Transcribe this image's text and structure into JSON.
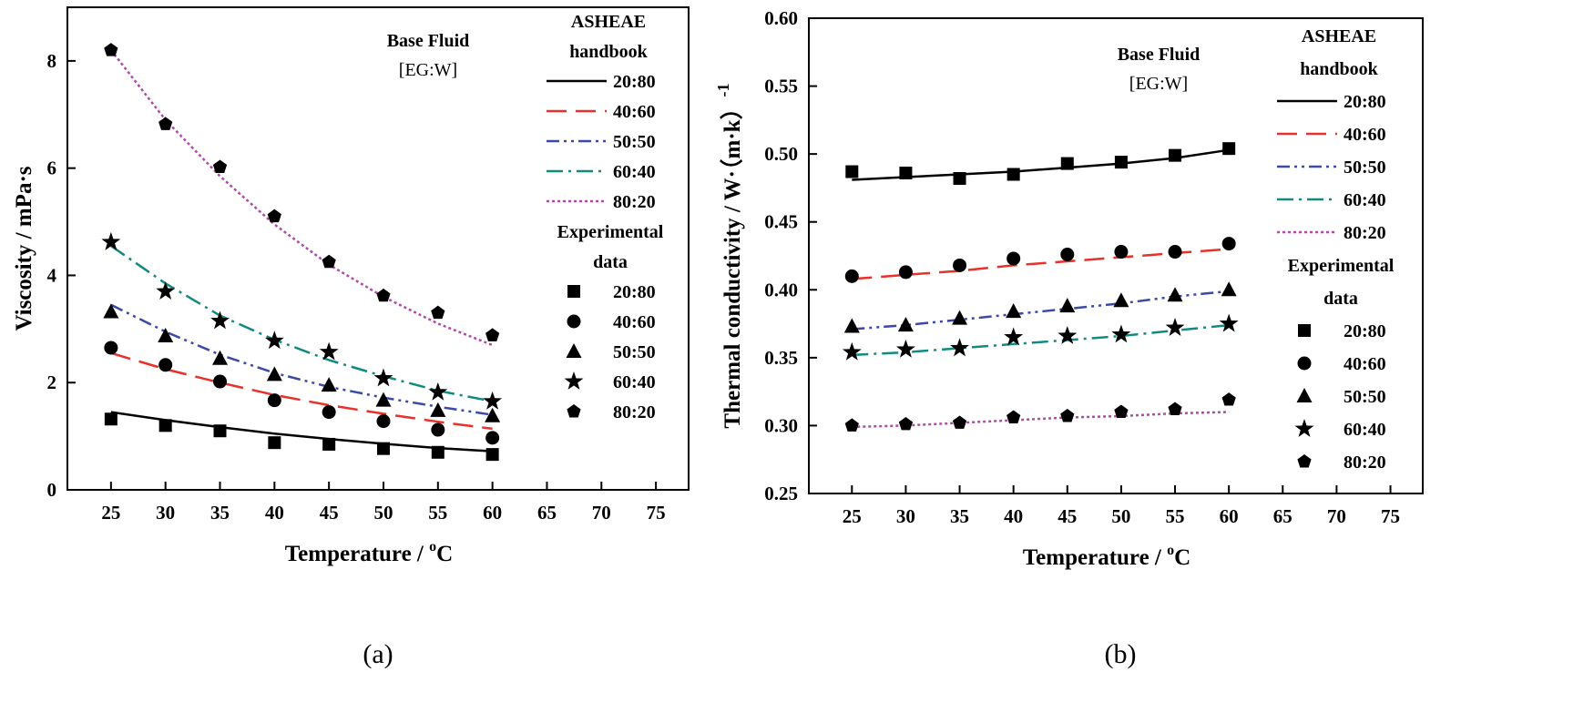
{
  "palette": {
    "20:80": "#000000",
    "40:60": "#e8312a",
    "50:50": "#3a4aa6",
    "60:40": "#138a80",
    "80:20": "#b04aa8"
  },
  "chart_data": [
    {
      "type": "line",
      "panel_label": "(a)",
      "xlabel": "Temperature / ",
      "xlabel_unit_sup": "o",
      "xlabel_unit": "C",
      "ylabel": "Viscosity /   mPa·s",
      "ylabel_sup": "",
      "xlim": [
        21,
        78
      ],
      "ylim": [
        0,
        9
      ],
      "xticks": [
        25,
        30,
        35,
        40,
        45,
        50,
        55,
        60,
        65,
        70,
        75
      ],
      "yticks": [
        0,
        2,
        4,
        6,
        8
      ],
      "base_fluid": [
        "Base Fluid",
        "[EG:W]"
      ],
      "handbook_title": [
        "ASHEAE",
        "handbook"
      ],
      "experimental_title": [
        "Experimental",
        "data"
      ],
      "x": [
        25,
        30,
        35,
        40,
        45,
        50,
        55,
        60
      ],
      "series": [
        {
          "name": "20:80",
          "marker": "square",
          "dash": "solid",
          "line": [
            1.45,
            1.3,
            1.17,
            1.05,
            0.95,
            0.86,
            0.78,
            0.72
          ],
          "points": [
            1.32,
            1.2,
            1.1,
            0.88,
            0.85,
            0.77,
            0.7,
            0.66
          ]
        },
        {
          "name": "40:60",
          "marker": "circle",
          "dash": "dash",
          "line": [
            2.55,
            2.25,
            2.0,
            1.77,
            1.58,
            1.42,
            1.27,
            1.14
          ],
          "points": [
            2.65,
            2.33,
            2.02,
            1.67,
            1.45,
            1.28,
            1.12,
            0.97
          ]
        },
        {
          "name": "50:50",
          "marker": "triangle",
          "dash": "dashdotdot",
          "line": [
            3.45,
            2.95,
            2.52,
            2.18,
            1.92,
            1.72,
            1.55,
            1.4
          ],
          "points": [
            3.32,
            2.87,
            2.45,
            2.15,
            1.95,
            1.67,
            1.48,
            1.38
          ]
        },
        {
          "name": "60:40",
          "marker": "star",
          "dash": "dashdot",
          "line": [
            4.55,
            3.85,
            3.25,
            2.8,
            2.42,
            2.12,
            1.85,
            1.65
          ],
          "points": [
            4.62,
            3.7,
            3.15,
            2.78,
            2.57,
            2.08,
            1.82,
            1.65
          ]
        },
        {
          "name": "80:20",
          "marker": "pentagon",
          "dash": "dot",
          "line": [
            8.2,
            6.9,
            5.85,
            4.95,
            4.2,
            3.6,
            3.1,
            2.7
          ],
          "points": [
            8.2,
            6.82,
            6.02,
            5.1,
            4.25,
            3.62,
            3.3,
            2.88
          ]
        }
      ]
    },
    {
      "type": "line",
      "panel_label": "(b)",
      "xlabel": "Temperature / ",
      "xlabel_unit_sup": "o",
      "xlabel_unit": "C",
      "ylabel": "Thermal conductivity   / W·（m·k）",
      "ylabel_sup": "-1",
      "xlim": [
        21,
        78
      ],
      "ylim": [
        0.25,
        0.6
      ],
      "xticks": [
        25,
        30,
        35,
        40,
        45,
        50,
        55,
        60,
        65,
        70,
        75
      ],
      "yticks": [
        0.25,
        0.3,
        0.35,
        0.4,
        0.45,
        0.5,
        0.55,
        0.6
      ],
      "ytick_labels": [
        "0.25",
        "0.30",
        "0.35",
        "0.40",
        "0.45",
        "0.50",
        "0.55",
        "0.60"
      ],
      "base_fluid": [
        "Base Fluid",
        "[EG:W]"
      ],
      "handbook_title": [
        "ASHEAE",
        "handbook"
      ],
      "experimental_title": [
        "Experimental",
        "data"
      ],
      "x": [
        25,
        30,
        35,
        40,
        45,
        50,
        55,
        60
      ],
      "series": [
        {
          "name": "20:80",
          "marker": "square",
          "dash": "solid",
          "line": [
            0.481,
            0.483,
            0.485,
            0.487,
            0.49,
            0.493,
            0.497,
            0.503
          ],
          "points": [
            0.487,
            0.486,
            0.482,
            0.485,
            0.493,
            0.494,
            0.499,
            0.504
          ]
        },
        {
          "name": "40:60",
          "marker": "circle",
          "dash": "dash",
          "line": [
            0.408,
            0.411,
            0.414,
            0.418,
            0.421,
            0.424,
            0.427,
            0.43
          ],
          "points": [
            0.41,
            0.413,
            0.418,
            0.423,
            0.426,
            0.428,
            0.428,
            0.434
          ]
        },
        {
          "name": "50:50",
          "marker": "triangle",
          "dash": "dashdotdot",
          "line": [
            0.371,
            0.374,
            0.378,
            0.382,
            0.386,
            0.39,
            0.395,
            0.399
          ],
          "points": [
            0.373,
            0.374,
            0.379,
            0.384,
            0.388,
            0.392,
            0.396,
            0.4
          ]
        },
        {
          "name": "60:40",
          "marker": "star",
          "dash": "dashdot",
          "line": [
            0.352,
            0.354,
            0.357,
            0.36,
            0.363,
            0.366,
            0.37,
            0.374
          ],
          "points": [
            0.354,
            0.356,
            0.357,
            0.365,
            0.366,
            0.367,
            0.372,
            0.375
          ]
        },
        {
          "name": "80:20",
          "marker": "pentagon",
          "dash": "dot",
          "line": [
            0.299,
            0.3,
            0.302,
            0.304,
            0.306,
            0.307,
            0.309,
            0.31
          ],
          "points": [
            0.3,
            0.301,
            0.302,
            0.306,
            0.307,
            0.31,
            0.312,
            0.319
          ]
        }
      ]
    }
  ]
}
